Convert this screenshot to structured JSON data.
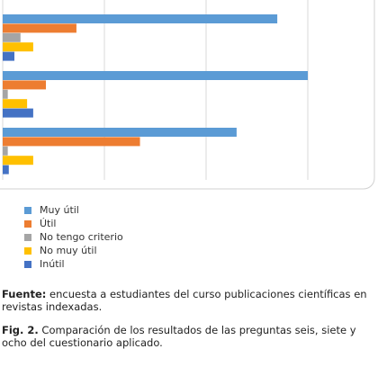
{
  "chart_data": {
    "type": "bar",
    "orientation": "horizontal",
    "title": "",
    "xlabel": "",
    "ylabel": "",
    "xlim": [
      0,
      60
    ],
    "grid": true,
    "categories": [
      "",
      "",
      ""
    ],
    "series": [
      {
        "name": "Muy útil",
        "color": "#5b9bd5",
        "values": [
          54,
          60,
          46
        ]
      },
      {
        "name": "Útil",
        "color": "#ed7d31",
        "values": [
          14.5,
          8.5,
          27
        ]
      },
      {
        "name": "No tengo criterio",
        "color": "#a5a5a5",
        "values": [
          3.5,
          1,
          1
        ]
      },
      {
        "name": "No muy útil",
        "color": "#ffc000",
        "values": [
          6,
          4.8,
          6
        ]
      },
      {
        "name": "Inútil",
        "color": "#4472c4",
        "values": [
          2.3,
          6,
          1.2
        ]
      }
    ],
    "legend_position": "bottom-left"
  },
  "caption": {
    "source_label": "Fuente:",
    "source_text": " encuesta a estudiantes del curso publicaciones científicas en revistas indexadas.",
    "fig_label": "Fig. 2.",
    "fig_text": " Comparación de los resultados de las preguntas seis, siete y ocho del cuestionario aplicado."
  }
}
